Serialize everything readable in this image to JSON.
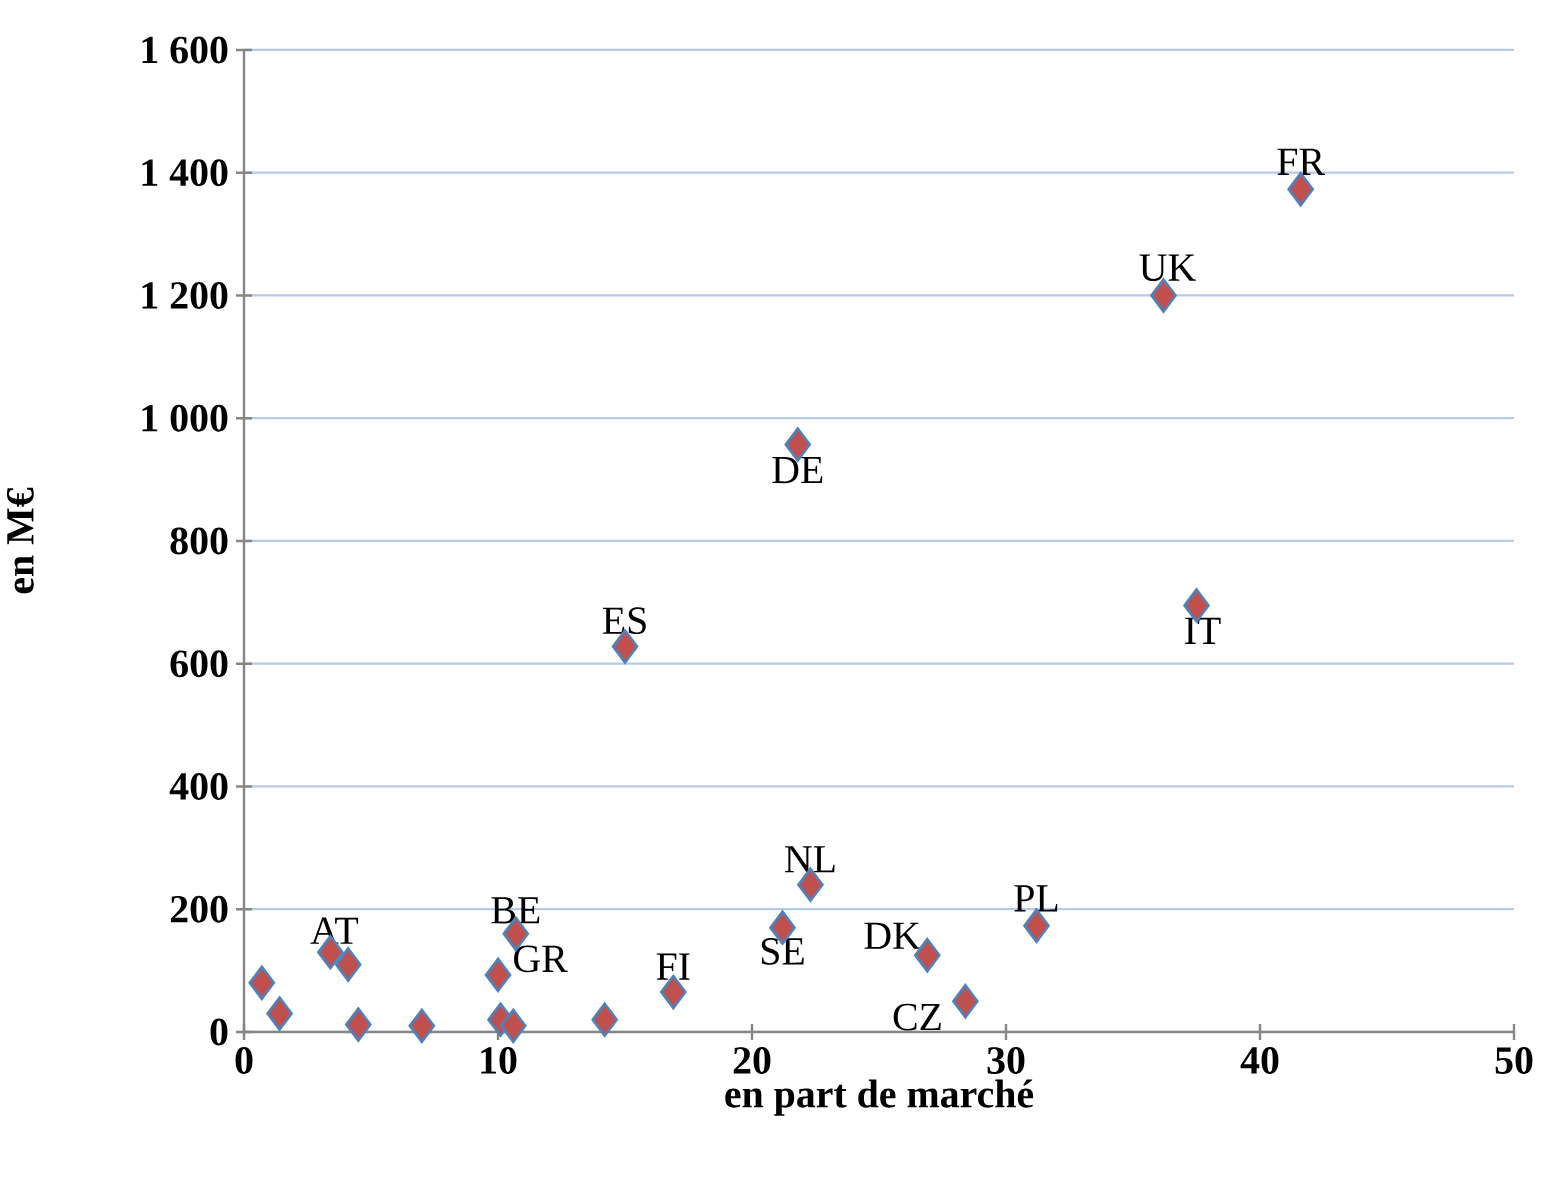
{
  "chart_data": {
    "type": "scatter",
    "xlabel": "en part de marché",
    "ylabel": "en M€",
    "xlim": [
      0,
      50
    ],
    "xticks": [
      0,
      10,
      20,
      30,
      40,
      50
    ],
    "ylim": [
      0,
      1600
    ],
    "yticks": [
      0,
      200,
      400,
      600,
      800,
      {
        "value": 1000,
        "label": "1 000"
      },
      {
        "value": 1200,
        "label": "1 200"
      },
      {
        "value": 1400,
        "label": "1 400"
      },
      {
        "value": 1600,
        "label": "1 600"
      }
    ],
    "grid": "y",
    "marker": "diamond",
    "series": [
      {
        "color": "#c0504d",
        "x": [
          0.7,
          1.4,
          3.4,
          4.1,
          4.5,
          7.0,
          10.0,
          10.7,
          10.1,
          10.6,
          14.2,
          16.9,
          21.2,
          22.3,
          26.9,
          28.4,
          31.2,
          15.0,
          21.8,
          37.5,
          36.2,
          41.6
        ],
        "values": [
          80,
          30,
          130,
          110,
          12,
          10,
          93,
          160,
          20,
          10,
          20,
          65,
          170,
          240,
          125,
          50,
          173,
          628,
          957,
          695,
          1200,
          1373
        ]
      }
    ],
    "annotations": [
      {
        "text": "AT",
        "x": 3.4,
        "y": 130
      },
      {
        "text": "BE",
        "x": 10.7,
        "y": 160
      },
      {
        "text": "GR",
        "x": 10.0,
        "y": 93
      },
      {
        "text": "FI",
        "x": 16.9,
        "y": 65
      },
      {
        "text": "SE",
        "x": 21.2,
        "y": 170
      },
      {
        "text": "NL",
        "x": 22.3,
        "y": 240
      },
      {
        "text": "DK",
        "x": 26.9,
        "y": 125
      },
      {
        "text": "CZ",
        "x": 28.4,
        "y": 50
      },
      {
        "text": "PL",
        "x": 31.2,
        "y": 173
      },
      {
        "text": "ES",
        "x": 15.0,
        "y": 628
      },
      {
        "text": "DE",
        "x": 21.8,
        "y": 957
      },
      {
        "text": "IT",
        "x": 37.5,
        "y": 695
      },
      {
        "text": "UK",
        "x": 36.2,
        "y": 1200
      },
      {
        "text": "FR",
        "x": 41.6,
        "y": 1373
      }
    ]
  }
}
